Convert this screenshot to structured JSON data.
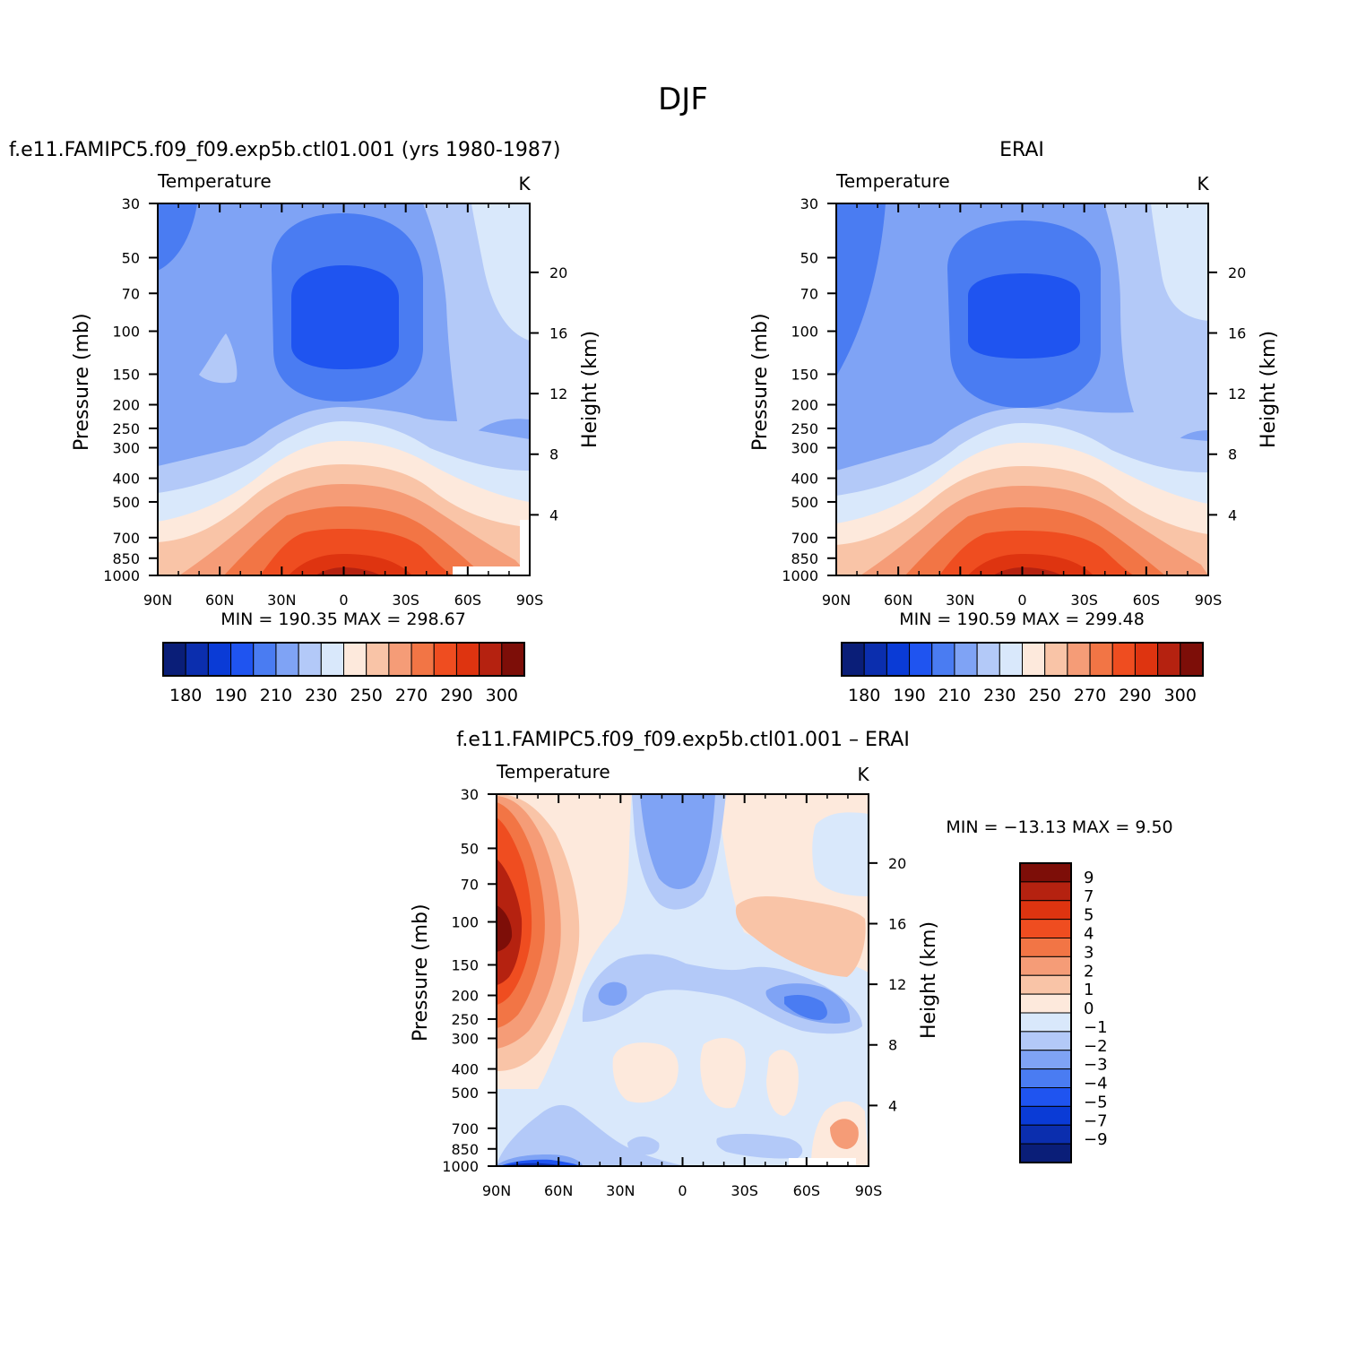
{
  "main_title": "DJF",
  "colors": {
    "temp_palette": [
      "#0a1e78",
      "#0b2eae",
      "#0a3bd6",
      "#1f54f0",
      "#4a7cf2",
      "#7fa3f5",
      "#b3c9f8",
      "#d9e8fb",
      "#fde9dc",
      "#f9c4a7",
      "#f59c77",
      "#f27545",
      "#ef4d20",
      "#de3410",
      "#b52210",
      "#7d0e08"
    ],
    "diff_palette": [
      "#0a1e78",
      "#0b2eae",
      "#0a3bd6",
      "#1f54f0",
      "#4a7cf2",
      "#7fa3f5",
      "#b3c9f8",
      "#d9e8fb",
      "#fde9dc",
      "#f9c4a7",
      "#f59c77",
      "#f27545",
      "#ef4d20",
      "#de3410",
      "#b52210",
      "#7d0e08"
    ]
  },
  "chart_data": [
    {
      "type": "contour",
      "id": "model",
      "title": "f.e11.FAMIPC5.f09_f09.exp5b.ctl01.001 (yrs 1980-1987)",
      "left_label": "Temperature",
      "right_label": "K",
      "xlabel": "",
      "ylabel": "Pressure (mb)",
      "ylabel_right": "Height (km)",
      "x_ticks": [
        "90N",
        "60N",
        "30N",
        "0",
        "30S",
        "60S",
        "90S"
      ],
      "y_ticks": [
        "30",
        "50",
        "70",
        "100",
        "150",
        "200",
        "250",
        "300",
        "400",
        "500",
        "700",
        "850",
        "1000"
      ],
      "y_right_ticks": [
        "20",
        "16",
        "12",
        "8",
        "4"
      ],
      "stats": "MIN = 190.35   MAX = 298.67",
      "colorbar_labels": [
        "180",
        "190",
        "210",
        "230",
        "250",
        "270",
        "290",
        "300"
      ]
    },
    {
      "type": "contour",
      "id": "obs",
      "title": "ERAI",
      "left_label": "Temperature",
      "right_label": "K",
      "xlabel": "",
      "ylabel": "Pressure (mb)",
      "ylabel_right": "Height (km)",
      "x_ticks": [
        "90N",
        "60N",
        "30N",
        "0",
        "30S",
        "60S",
        "90S"
      ],
      "y_ticks": [
        "30",
        "50",
        "70",
        "100",
        "150",
        "200",
        "250",
        "300",
        "400",
        "500",
        "700",
        "850",
        "1000"
      ],
      "y_right_ticks": [
        "20",
        "16",
        "12",
        "8",
        "4"
      ],
      "stats": "MIN = 190.59   MAX = 299.48",
      "colorbar_labels": [
        "180",
        "190",
        "210",
        "230",
        "250",
        "270",
        "290",
        "300"
      ]
    },
    {
      "type": "contour",
      "id": "diff",
      "title": "f.e11.FAMIPC5.f09_f09.exp5b.ctl01.001 – ERAI",
      "left_label": "Temperature",
      "right_label": "K",
      "xlabel": "",
      "ylabel": "Pressure (mb)",
      "ylabel_right": "Height (km)",
      "x_ticks": [
        "90N",
        "60N",
        "30N",
        "0",
        "30S",
        "60S",
        "90S"
      ],
      "y_ticks": [
        "30",
        "50",
        "70",
        "100",
        "150",
        "200",
        "250",
        "300",
        "400",
        "500",
        "700",
        "850",
        "1000"
      ],
      "y_right_ticks": [
        "20",
        "16",
        "12",
        "8",
        "4"
      ],
      "stats": "MIN = −13.13   MAX =    9.50",
      "colorbar_labels": [
        "9",
        "7",
        "5",
        "4",
        "3",
        "2",
        "1",
        "0",
        "−1",
        "−2",
        "−3",
        "−4",
        "−5",
        "−7",
        "−9"
      ]
    }
  ]
}
